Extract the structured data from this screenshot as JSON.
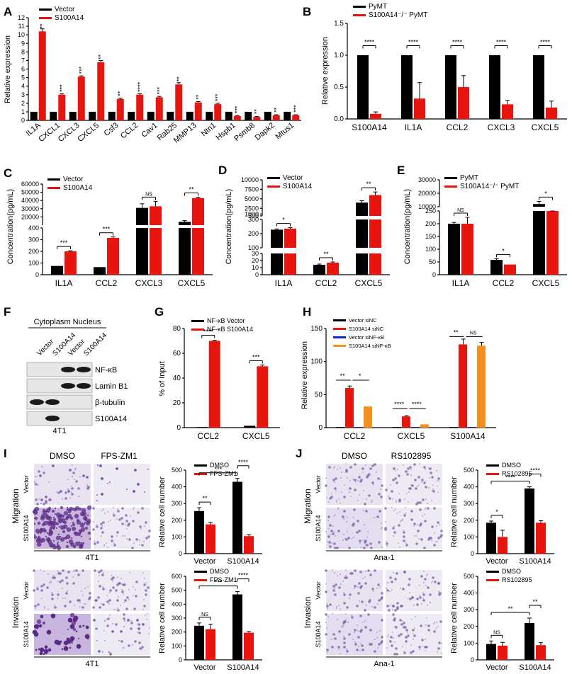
{
  "colors": {
    "vector": "#000000",
    "treat": "#e8150f",
    "blue": "#1f1fd6",
    "orange": "#f5901e",
    "axis": "#000000"
  },
  "panels": {
    "A": {
      "letter": "A",
      "ylabel": "Relative expression",
      "legend": [
        "Vector",
        "S100A14"
      ],
      "ymax": 12,
      "yticks": [
        0,
        1,
        2,
        3,
        4,
        5,
        6,
        7,
        8,
        9,
        10,
        11,
        12
      ],
      "categories": [
        "IL1A",
        "CXCL1",
        "CXCL3",
        "CXCL5",
        "Csf3",
        "CCL2",
        "Cav1",
        "Rab25",
        "MMP13",
        "Ntn1",
        "Hspb1",
        "Psmb8",
        "Dapk2",
        "Mtus1"
      ],
      "vector": [
        1,
        1,
        1,
        1,
        1,
        1,
        1,
        1,
        1,
        1,
        1,
        1,
        1,
        1
      ],
      "treat": [
        10.4,
        3.0,
        5.1,
        6.8,
        2.5,
        3.0,
        2.7,
        4.2,
        2.1,
        1.9,
        0.5,
        0.4,
        0.6,
        0.6
      ],
      "treat_err": [
        0.3,
        0.1,
        0.1,
        0.2,
        0.1,
        0.1,
        0.1,
        0.2,
        0.1,
        0.1,
        0.05,
        0.05,
        0.05,
        0.05
      ],
      "sig": [
        "**",
        "***",
        "***",
        "**",
        "**",
        "****",
        "***",
        "**",
        "**",
        "***",
        "***",
        "**",
        "**",
        "***"
      ]
    },
    "B": {
      "letter": "B",
      "ylabel": "Relative expression",
      "legend": [
        "PyMT",
        "S100A14⁻/⁻ PyMT"
      ],
      "ymax": 1.5,
      "yticks": [
        0.0,
        0.5,
        1.0,
        1.5
      ],
      "categories": [
        "S100A14",
        "IL1A",
        "CCL2",
        "CXCL3",
        "CXCL5"
      ],
      "vector": [
        1,
        1,
        1,
        1,
        1
      ],
      "treat": [
        0.08,
        0.32,
        0.5,
        0.23,
        0.18
      ],
      "treat_err": [
        0.03,
        0.25,
        0.18,
        0.06,
        0.1
      ],
      "sig": [
        "****",
        "****",
        "****",
        "****",
        "****"
      ]
    },
    "C": {
      "letter": "C",
      "ylabel": "Concentration(pg/mL)",
      "legend": [
        "Vector",
        "S100A14"
      ],
      "lower": {
        "max": 400,
        "ticks": [
          0,
          100,
          200,
          300,
          400
        ]
      },
      "upper": {
        "min": 10000,
        "max": 60000,
        "ticks": [
          20000,
          30000,
          40000,
          50000,
          60000
        ]
      },
      "categories": [
        "IL1A",
        "CCL2",
        "CXCL3",
        "CXCL5"
      ],
      "vector": [
        75,
        65,
        31000,
        14000
      ],
      "vector_err": [
        0,
        0,
        5000,
        1500
      ],
      "treat": [
        200,
        315,
        33000,
        43000
      ],
      "treat_err": [
        5,
        8,
        6000,
        1000
      ],
      "sig": [
        "***",
        "***",
        "NS",
        "**"
      ]
    },
    "D": {
      "letter": "D",
      "ylabel": "Concentration(pg/mL)",
      "legend": [
        "Vector",
        "S100A14"
      ],
      "lower": {
        "max": 30,
        "ticks": [
          0,
          10,
          20,
          30
        ]
      },
      "mid": {
        "min": 100,
        "max": 300,
        "ticks": [
          100,
          200,
          300
        ]
      },
      "upper": {
        "min": 500,
        "max": 10000,
        "ticks": [
          500,
          1000,
          2500,
          5000,
          7500,
          10000
        ]
      },
      "categories": [
        "IL1A",
        "CCL2",
        "CXCL5"
      ],
      "vector": [
        228,
        14,
        4000
      ],
      "vector_err": [
        5,
        1,
        500
      ],
      "treat": [
        235,
        17,
        6000
      ],
      "treat_err": [
        7,
        1,
        800
      ],
      "sig": [
        "*",
        "**",
        "**"
      ]
    },
    "E": {
      "letter": "E",
      "ylabel": "Concentration(pg/mL)",
      "legend": [
        "PyMT",
        "S100A14⁻/⁻ PyMT"
      ],
      "lower": {
        "max": 250,
        "ticks": [
          0,
          50,
          100,
          150,
          200,
          250
        ]
      },
      "upper": {
        "min": 10000,
        "max": 30000,
        "ticks": [
          10000,
          20000,
          30000
        ]
      },
      "categories": [
        "IL1A",
        "CCL2",
        "CXCL5"
      ],
      "vector": [
        200,
        58,
        12000
      ],
      "vector_err": [
        5,
        5,
        2000
      ],
      "treat": [
        200,
        40,
        7000
      ],
      "treat_err": [
        25,
        0,
        500
      ],
      "sig": [
        "NS",
        "*",
        "*"
      ]
    },
    "F": {
      "letter": "F",
      "header": "Cytoplasm Nucleus",
      "lanes": [
        "Vector",
        "S100A14",
        "Vector",
        "S100A14"
      ],
      "bands": [
        "NF-κB",
        "Lamin B1",
        "β-tubulin",
        "S100A14"
      ],
      "cell": "4T1"
    },
    "G": {
      "letter": "G",
      "ylabel": "% of Input",
      "legend": [
        "NF-κB Vector",
        "NF-κB S100A14"
      ],
      "ymax": 80,
      "yticks": [
        0,
        20,
        40,
        60,
        80
      ],
      "categories": [
        "CCL2",
        "CXCL5"
      ],
      "vector": [
        0.5,
        1.5
      ],
      "treat": [
        70,
        49.5
      ],
      "treat_err": [
        0.5,
        1
      ],
      "sig": [
        "****",
        "***"
      ]
    },
    "H": {
      "letter": "H",
      "ylabel": "Relative expression",
      "legend": [
        "Vector siNC",
        "S100A14 siNC",
        "Vector siNF-κB",
        "S100A14 siNF-κB"
      ],
      "ymax": 150,
      "yticks": [
        0,
        50,
        100,
        150
      ],
      "categories": [
        "CCL2",
        "CXCL5",
        "S100A14"
      ],
      "series": [
        {
          "name": "Vector siNC",
          "values": [
            1,
            1,
            1
          ]
        },
        {
          "name": "S100A14 siNC",
          "values": [
            60,
            17,
            126
          ]
        },
        {
          "name": "Vector siNF-κB",
          "values": [
            1,
            1,
            1
          ]
        },
        {
          "name": "S100A14 siNF-κB",
          "values": [
            32,
            5,
            124
          ]
        }
      ],
      "errors": [
        [
          0,
          3,
          0,
          0
        ],
        [
          0,
          1,
          0,
          0
        ],
        [
          0,
          8,
          0,
          5
        ]
      ],
      "sig": [
        [
          "**",
          "*"
        ],
        [
          "****",
          "****"
        ],
        [
          "**",
          "NS"
        ]
      ]
    },
    "I": {
      "letter": "I",
      "col_labels": [
        "DMSO",
        "FPS-ZM1"
      ],
      "row_labels": [
        "Vector",
        "S100A14"
      ],
      "cell": "4T1",
      "migration": {
        "title": "Migration",
        "ylabel": "Relative cell number",
        "legend": [
          "DMSO",
          "FPS-ZM1"
        ],
        "ymax": 500,
        "yticks": [
          0,
          100,
          200,
          300,
          400,
          500
        ],
        "categories": [
          "Vector",
          "S100A14"
        ],
        "vector": [
          255,
          430
        ],
        "vector_err": [
          20,
          20
        ],
        "treat": [
          175,
          105
        ],
        "treat_err": [
          12,
          8
        ],
        "sig": [
          "**",
          "***",
          "****"
        ]
      },
      "invasion": {
        "title": "Invasion",
        "ylabel": "Relative cell number",
        "legend": [
          "DMSO",
          "FPS-ZM1"
        ],
        "ymax": 600,
        "yticks": [
          0,
          100,
          200,
          300,
          400,
          500,
          600
        ],
        "categories": [
          "Vector",
          "S100A14"
        ],
        "vector": [
          245,
          470
        ],
        "vector_err": [
          20,
          20
        ],
        "treat": [
          220,
          195
        ],
        "treat_err": [
          35,
          8
        ],
        "sig": [
          "NS",
          "***",
          "****"
        ]
      }
    },
    "J": {
      "letter": "J",
      "col_labels": [
        "DMSO",
        "RS102895"
      ],
      "row_labels": [
        "Vector",
        "S100A14"
      ],
      "cell": "Ana-1",
      "migration": {
        "title": "Migration",
        "ylabel": "Relative cell number",
        "legend": [
          "DMSO",
          "RS102895"
        ],
        "ymax": 500,
        "yticks": [
          0,
          100,
          200,
          300,
          400,
          500
        ],
        "categories": [
          "Vector",
          "S100A14"
        ],
        "vector": [
          185,
          390
        ],
        "vector_err": [
          10,
          10
        ],
        "treat": [
          100,
          185
        ],
        "treat_err": [
          40,
          12
        ],
        "sig": [
          "*",
          "****",
          "****"
        ]
      },
      "invasion": {
        "title": "Invasion",
        "ylabel": "Relative cell number",
        "legend": [
          "DMSO",
          "RS102895"
        ],
        "ymax": 500,
        "yticks": [
          0,
          100,
          200,
          300,
          400,
          500
        ],
        "categories": [
          "Vector",
          "S100A14"
        ],
        "vector": [
          95,
          220
        ],
        "vector_err": [
          18,
          30
        ],
        "treat": [
          85,
          88
        ],
        "treat_err": [
          20,
          15
        ],
        "sig": [
          "NS",
          "**",
          "**"
        ]
      }
    }
  },
  "chart_data": [
    {
      "type": "bar",
      "title": "A",
      "categories": [
        "IL1A",
        "CXCL1",
        "CXCL3",
        "CXCL5",
        "Csf3",
        "CCL2",
        "Cav1",
        "Rab25",
        "MMP13",
        "Ntn1",
        "Hspb1",
        "Psmb8",
        "Dapk2",
        "Mtus1"
      ],
      "series": [
        {
          "name": "Vector",
          "values": [
            1,
            1,
            1,
            1,
            1,
            1,
            1,
            1,
            1,
            1,
            1,
            1,
            1,
            1
          ]
        },
        {
          "name": "S100A14",
          "values": [
            10.4,
            3.0,
            5.1,
            6.8,
            2.5,
            3.0,
            2.7,
            4.2,
            2.1,
            1.9,
            0.5,
            0.4,
            0.6,
            0.6
          ]
        }
      ],
      "ylabel": "Relative expression",
      "ylim": [
        0,
        12
      ]
    },
    {
      "type": "bar",
      "title": "B",
      "categories": [
        "S100A14",
        "IL1A",
        "CCL2",
        "CXCL3",
        "CXCL5"
      ],
      "series": [
        {
          "name": "PyMT",
          "values": [
            1,
            1,
            1,
            1,
            1
          ]
        },
        {
          "name": "S100A14⁻/⁻ PyMT",
          "values": [
            0.08,
            0.32,
            0.5,
            0.23,
            0.18
          ]
        }
      ],
      "ylabel": "Relative expression",
      "ylim": [
        0,
        1.5
      ]
    },
    {
      "type": "bar",
      "title": "C",
      "categories": [
        "IL1A",
        "CCL2",
        "CXCL3",
        "CXCL5"
      ],
      "series": [
        {
          "name": "Vector",
          "values": [
            75,
            65,
            31000,
            14000
          ]
        },
        {
          "name": "S100A14",
          "values": [
            200,
            315,
            33000,
            43000
          ]
        }
      ],
      "ylabel": "Concentration(pg/mL)"
    },
    {
      "type": "bar",
      "title": "D",
      "categories": [
        "IL1A",
        "CCL2",
        "CXCL5"
      ],
      "series": [
        {
          "name": "Vector",
          "values": [
            228,
            14,
            4000
          ]
        },
        {
          "name": "S100A14",
          "values": [
            235,
            17,
            6000
          ]
        }
      ],
      "ylabel": "Concentration(pg/mL)"
    },
    {
      "type": "bar",
      "title": "E",
      "categories": [
        "IL1A",
        "CCL2",
        "CXCL5"
      ],
      "series": [
        {
          "name": "PyMT",
          "values": [
            200,
            58,
            12000
          ]
        },
        {
          "name": "S100A14⁻/⁻ PyMT",
          "values": [
            200,
            40,
            7000
          ]
        }
      ],
      "ylabel": "Concentration(pg/mL)"
    },
    {
      "type": "bar",
      "title": "G",
      "categories": [
        "CCL2",
        "CXCL5"
      ],
      "series": [
        {
          "name": "NF-κB Vector",
          "values": [
            0.5,
            1.5
          ]
        },
        {
          "name": "NF-κB S100A14",
          "values": [
            70,
            49.5
          ]
        }
      ],
      "ylabel": "% of Input",
      "ylim": [
        0,
        80
      ]
    },
    {
      "type": "bar",
      "title": "H",
      "categories": [
        "CCL2",
        "CXCL5",
        "S100A14"
      ],
      "series": [
        {
          "name": "Vector siNC",
          "values": [
            1,
            1,
            1
          ]
        },
        {
          "name": "S100A14 siNC",
          "values": [
            60,
            17,
            126
          ]
        },
        {
          "name": "Vector siNF-κB",
          "values": [
            1,
            1,
            1
          ]
        },
        {
          "name": "S100A14 siNF-κB",
          "values": [
            32,
            5,
            124
          ]
        }
      ],
      "ylabel": "Relative expression",
      "ylim": [
        0,
        150
      ]
    },
    {
      "type": "bar",
      "title": "I Migration",
      "categories": [
        "Vector",
        "S100A14"
      ],
      "series": [
        {
          "name": "DMSO",
          "values": [
            255,
            430
          ]
        },
        {
          "name": "FPS-ZM1",
          "values": [
            175,
            105
          ]
        }
      ],
      "ylabel": "Relative cell number",
      "ylim": [
        0,
        500
      ]
    },
    {
      "type": "bar",
      "title": "I Invasion",
      "categories": [
        "Vector",
        "S100A14"
      ],
      "series": [
        {
          "name": "DMSO",
          "values": [
            245,
            470
          ]
        },
        {
          "name": "FPS-ZM1",
          "values": [
            220,
            195
          ]
        }
      ],
      "ylabel": "Relative cell number",
      "ylim": [
        0,
        600
      ]
    },
    {
      "type": "bar",
      "title": "J Migration",
      "categories": [
        "Vector",
        "S100A14"
      ],
      "series": [
        {
          "name": "DMSO",
          "values": [
            185,
            390
          ]
        },
        {
          "name": "RS102895",
          "values": [
            100,
            185
          ]
        }
      ],
      "ylabel": "Relative cell number",
      "ylim": [
        0,
        500
      ]
    },
    {
      "type": "bar",
      "title": "J Invasion",
      "categories": [
        "Vector",
        "S100A14"
      ],
      "series": [
        {
          "name": "DMSO",
          "values": [
            95,
            220
          ]
        },
        {
          "name": "RS102895",
          "values": [
            85,
            88
          ]
        }
      ],
      "ylabel": "Relative cell number",
      "ylim": [
        0,
        500
      ]
    }
  ]
}
